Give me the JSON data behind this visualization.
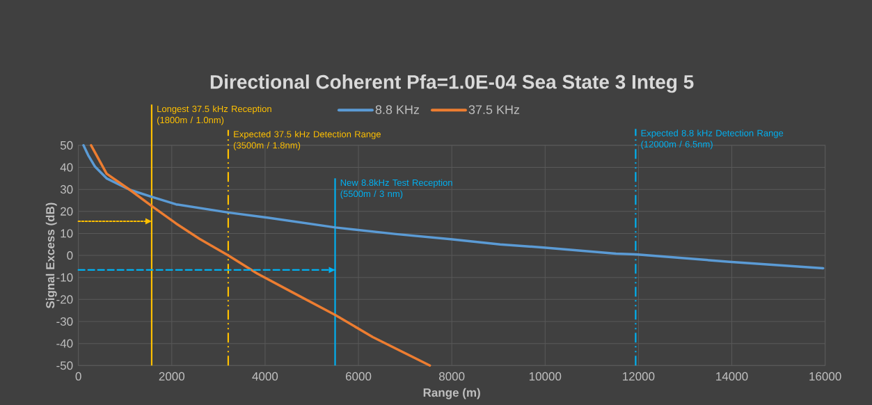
{
  "chart_data": {
    "type": "line",
    "title": "Directional Coherent  Pfa=1.0E-04  Sea State 3  Integ 5",
    "xlabel": "Range (m)",
    "ylabel": "Signal Excess (dB)",
    "xlim": [
      0,
      16000
    ],
    "ylim": [
      -50,
      50
    ],
    "xticks": [
      0,
      2000,
      4000,
      6000,
      8000,
      10000,
      12000,
      14000,
      16000
    ],
    "yticks": [
      -50,
      -40,
      -30,
      -20,
      -10,
      0,
      10,
      20,
      30,
      40,
      50
    ],
    "grid": true,
    "legend": "top",
    "line_style": "solid",
    "series": [
      {
        "name": "8.8 KHz",
        "color": "#5b9bd5",
        "x": [
          109,
          208,
          357,
          605,
          1101,
          1572,
          2093,
          3210,
          4077,
          5506,
          6805,
          7980,
          9037,
          9970,
          11518,
          11939,
          13948,
          15957
        ],
        "values": [
          50,
          45.6,
          40.3,
          35.0,
          29.8,
          26.6,
          23.2,
          19.5,
          17.1,
          12.7,
          9.7,
          7.4,
          5.0,
          3.6,
          0.8,
          0.5,
          -2.9,
          -5.8
        ]
      },
      {
        "name": "37.5 KHz",
        "color": "#ed7d31",
        "x": [
          272,
          605,
          1101,
          1572,
          2093,
          2589,
          3210,
          3829,
          4573,
          5506,
          6310,
          7530
        ],
        "values": [
          50,
          37.1,
          29.8,
          22.4,
          14.5,
          7.6,
          0,
          -8.2,
          -16.6,
          -27.1,
          -37.1,
          -50
        ]
      },
      {
        "color": "#ffc000",
        "line_style": "dotted",
        "x": [
          0,
          1570
        ],
        "values": [
          15.5,
          15.5
        ]
      },
      {
        "color": "#00b0f0",
        "line_style": "dashed",
        "x": [
          0,
          5500
        ],
        "values": [
          -6.6,
          -6.6
        ]
      }
    ],
    "ref_lines": [
      {
        "axis": "x",
        "value": 1570,
        "label": "Longest 37.5 kHz Reception (1800m / 1.0nm)",
        "color": "#ffc000",
        "line_style": "solid"
      },
      {
        "axis": "x",
        "value": 3210,
        "label": "Expected 37.5 kHz Detection Range (3500m / 1.8nm)",
        "color": "#ffc000",
        "line_style": "dashdot"
      },
      {
        "axis": "x",
        "value": 5500,
        "label": "New 8.8kHz Test Reception (5500m / 3 nm)",
        "color": "#00b0f0",
        "line_style": "solid"
      },
      {
        "axis": "x",
        "value": 11940,
        "label": "Expected 8.8 kHz Detection Range (12000m / 6.5nm)",
        "color": "#00b0f0",
        "line_style": "dashdot"
      }
    ]
  }
}
